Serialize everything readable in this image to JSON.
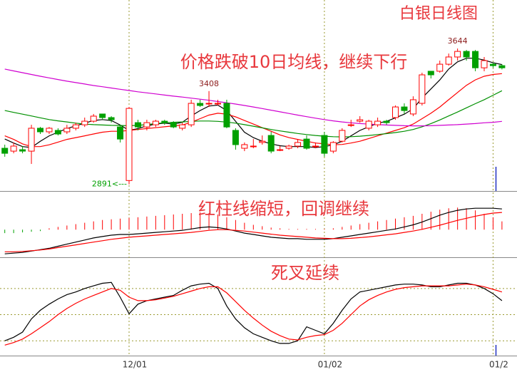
{
  "chart_data": [
    {
      "type": "candlestick",
      "title": "白银日线图",
      "annotation": "价格跌破10日均线，继续下行",
      "ylim": [
        2854,
        3913
      ],
      "up_color": "#ff0000",
      "down_color": "#00a000",
      "open": [
        3091,
        3075,
        3083,
        3075,
        3202,
        3182,
        3190,
        3182,
        3202,
        3221,
        3241,
        3281,
        3261,
        3209,
        2912,
        3233,
        3209,
        3221,
        3241,
        3233,
        3202,
        3221,
        3340,
        3340,
        3340,
        3340,
        3190,
        3091,
        3103,
        3123,
        3162,
        3083,
        3091,
        3103,
        3142,
        3103,
        3162,
        3075,
        3130,
        3221,
        3241,
        3202,
        3221,
        3241,
        3261,
        3320,
        3281,
        3340,
        3518,
        3518,
        3557,
        3597,
        3628,
        3628,
        3537,
        3557,
        3549
      ],
      "high": [
        3111,
        3123,
        3103,
        3221,
        3209,
        3209,
        3202,
        3221,
        3233,
        3261,
        3281,
        3281,
        3269,
        3221,
        3320,
        3249,
        3249,
        3249,
        3249,
        3241,
        3233,
        3360,
        3360,
        3408,
        3360,
        3360,
        3202,
        3123,
        3142,
        3162,
        3182,
        3103,
        3111,
        3142,
        3162,
        3123,
        3182,
        3130,
        3202,
        3249,
        3269,
        3249,
        3261,
        3249,
        3328,
        3340,
        3379,
        3510,
        3518,
        3577,
        3616,
        3644,
        3636,
        3636,
        3597,
        3565,
        3557
      ],
      "low": [
        3044,
        3063,
        3063,
        3004,
        3170,
        3170,
        3162,
        3170,
        3190,
        3209,
        3233,
        3249,
        3233,
        3123,
        2891,
        3190,
        3190,
        3209,
        3221,
        3202,
        3190,
        3209,
        3320,
        3320,
        3328,
        3202,
        3083,
        3075,
        3091,
        3111,
        3063,
        3075,
        3083,
        3091,
        3083,
        3091,
        3044,
        3063,
        3123,
        3209,
        3233,
        3190,
        3209,
        3221,
        3249,
        3281,
        3269,
        3328,
        3478,
        3510,
        3549,
        3577,
        3577,
        3518,
        3518,
        3537,
        3528
      ],
      "close": [
        3063,
        3103,
        3075,
        3202,
        3182,
        3202,
        3170,
        3202,
        3221,
        3241,
        3269,
        3261,
        3249,
        3142,
        3312,
        3209,
        3233,
        3241,
        3233,
        3209,
        3221,
        3340,
        3328,
        3340,
        3340,
        3209,
        3111,
        3111,
        3103,
        3130,
        3075,
        3083,
        3103,
        3123,
        3091,
        3103,
        3063,
        3123,
        3190,
        3221,
        3249,
        3241,
        3241,
        3233,
        3320,
        3300,
        3360,
        3498,
        3498,
        3557,
        3597,
        3628,
        3597,
        3537,
        3577,
        3549,
        3537
      ],
      "high_labels": [
        null,
        null,
        null,
        null,
        null,
        null,
        null,
        null,
        null,
        null,
        null,
        null,
        null,
        null,
        null,
        null,
        null,
        null,
        null,
        null,
        null,
        null,
        null,
        "3408",
        null,
        null,
        null,
        null,
        null,
        null,
        null,
        null,
        null,
        null,
        null,
        null,
        null,
        null,
        null,
        null,
        null,
        null,
        null,
        null,
        null,
        null,
        null,
        null,
        null,
        null,
        null,
        "3644",
        null,
        null,
        null,
        null,
        null
      ],
      "low_labels": [
        null,
        null,
        null,
        null,
        null,
        null,
        null,
        null,
        null,
        null,
        null,
        null,
        null,
        null,
        "2891<---",
        null,
        null,
        null,
        null,
        null,
        null,
        null,
        null,
        null,
        null,
        null,
        null,
        null,
        null,
        null,
        null,
        null,
        null,
        null,
        null,
        null,
        null,
        null,
        null,
        null,
        null,
        null,
        null,
        null,
        null,
        null,
        null,
        null,
        null,
        null,
        null,
        null,
        null,
        null,
        null,
        null,
        null
      ],
      "lines": [
        {
          "color": "#000000",
          "values": [
            3142,
            3120,
            3100,
            3095,
            3130,
            3160,
            3180,
            3200,
            3215,
            3230,
            3245,
            3250,
            3245,
            3220,
            3190,
            3200,
            3215,
            3225,
            3230,
            3225,
            3235,
            3270,
            3300,
            3325,
            3330,
            3300,
            3240,
            3180,
            3150,
            3130,
            3115,
            3105,
            3100,
            3100,
            3100,
            3095,
            3100,
            3110,
            3130,
            3160,
            3190,
            3210,
            3230,
            3240,
            3260,
            3280,
            3310,
            3370,
            3420,
            3470,
            3530,
            3570,
            3590,
            3590,
            3580,
            3565,
            3555
          ]
        },
        {
          "color": "#ff0000",
          "values": [
            3160,
            3140,
            3115,
            3100,
            3100,
            3110,
            3125,
            3140,
            3150,
            3160,
            3170,
            3180,
            3185,
            3185,
            3190,
            3195,
            3200,
            3205,
            3210,
            3215,
            3220,
            3235,
            3255,
            3275,
            3285,
            3280,
            3265,
            3245,
            3225,
            3205,
            3185,
            3165,
            3150,
            3140,
            3130,
            3120,
            3115,
            3110,
            3112,
            3120,
            3130,
            3145,
            3160,
            3175,
            3190,
            3205,
            3225,
            3255,
            3285,
            3320,
            3360,
            3400,
            3440,
            3470,
            3490,
            3500,
            3505
          ]
        },
        {
          "color": "#009000",
          "values": [
            3300,
            3290,
            3280,
            3270,
            3260,
            3250,
            3243,
            3237,
            3230,
            3225,
            3222,
            3220,
            3218,
            3217,
            3216,
            3218,
            3222,
            3228,
            3232,
            3235,
            3237,
            3240,
            3242,
            3242,
            3240,
            3236,
            3230,
            3222,
            3213,
            3204,
            3195,
            3187,
            3180,
            3173,
            3167,
            3162,
            3158,
            3155,
            3154,
            3155,
            3158,
            3162,
            3167,
            3172,
            3178,
            3185,
            3195,
            3210,
            3228,
            3248,
            3270,
            3292,
            3315,
            3338,
            3360,
            3385,
            3410
          ]
        },
        {
          "color": "#d000d0",
          "values": [
            3530,
            3520,
            3510,
            3500,
            3490,
            3481,
            3472,
            3463,
            3455,
            3447,
            3439,
            3432,
            3425,
            3418,
            3411,
            3404,
            3398,
            3392,
            3386,
            3380,
            3375,
            3369,
            3363,
            3357,
            3350,
            3343,
            3336,
            3328,
            3320,
            3311,
            3302,
            3293,
            3284,
            3275,
            3266,
            3258,
            3250,
            3243,
            3237,
            3232,
            3228,
            3225,
            3222,
            3220,
            3218,
            3216,
            3215,
            3215,
            3216,
            3218,
            3220,
            3222,
            3225,
            3228,
            3232,
            3235,
            3240
          ]
        }
      ]
    },
    {
      "type": "macd",
      "annotation": "红柱线缩短，回调继续",
      "ylim": [
        -80,
        110
      ],
      "up_color": "#ff0000",
      "down_color": "#00a000",
      "bars": [
        -10,
        -10,
        -8,
        -6,
        -4,
        4,
        8,
        12,
        16,
        20,
        24,
        28,
        30,
        32,
        34,
        36,
        38,
        40,
        42,
        44,
        46,
        48,
        50,
        48,
        44,
        36,
        28,
        20,
        14,
        10,
        6,
        4,
        2,
        2,
        2,
        2,
        2,
        4,
        8,
        12,
        16,
        20,
        24,
        28,
        32,
        36,
        40,
        46,
        52,
        58,
        62,
        64,
        62,
        56,
        46,
        36,
        24
      ],
      "lines": [
        {
          "color": "#000000",
          "values": [
            -70,
            -68,
            -66,
            -62,
            -58,
            -54,
            -48,
            -42,
            -36,
            -30,
            -24,
            -20,
            -16,
            -14,
            -14,
            -12,
            -10,
            -8,
            -6,
            -4,
            -2,
            2,
            6,
            8,
            6,
            2,
            -4,
            -10,
            -14,
            -18,
            -22,
            -24,
            -26,
            -26,
            -28,
            -28,
            -28,
            -26,
            -22,
            -18,
            -14,
            -10,
            -6,
            -2,
            2,
            8,
            14,
            22,
            32,
            42,
            50,
            56,
            60,
            62,
            62,
            62,
            60
          ]
        },
        {
          "color": "#ff0000",
          "values": [
            -64,
            -64,
            -63,
            -61,
            -59,
            -56,
            -52,
            -48,
            -44,
            -40,
            -36,
            -32,
            -28,
            -25,
            -22,
            -20,
            -18,
            -16,
            -14,
            -12,
            -10,
            -8,
            -5,
            -2,
            0,
            0,
            -2,
            -4,
            -7,
            -10,
            -13,
            -16,
            -18,
            -20,
            -22,
            -24,
            -25,
            -26,
            -26,
            -25,
            -23,
            -21,
            -18,
            -15,
            -12,
            -8,
            -4,
            1,
            7,
            13,
            20,
            27,
            33,
            39,
            44,
            48,
            50
          ]
        }
      ]
    },
    {
      "type": "kdj",
      "annotation": "死叉延续",
      "ylim": [
        3,
        115
      ],
      "gridlines": [
        20,
        50,
        80
      ],
      "categories": [
        null,
        null,
        null,
        null,
        null,
        null,
        null,
        null,
        null,
        null,
        null,
        null,
        null,
        null,
        "12/01",
        null,
        null,
        null,
        null,
        null,
        null,
        null,
        null,
        null,
        null,
        null,
        null,
        null,
        null,
        null,
        null,
        null,
        null,
        null,
        null,
        null,
        "01/02",
        null,
        null,
        null,
        null,
        null,
        null,
        null,
        null,
        null,
        null,
        null,
        null,
        null,
        null,
        null,
        null,
        null,
        null,
        "01/2",
        null
      ],
      "lines": [
        {
          "color": "#000000",
          "values": [
            20,
            24,
            30,
            45,
            55,
            62,
            68,
            73,
            76,
            80,
            83,
            86,
            87,
            70,
            51,
            62,
            66,
            68,
            70,
            72,
            78,
            83,
            85,
            86,
            80,
            60,
            45,
            35,
            28,
            24,
            20,
            17,
            17,
            20,
            36,
            32,
            28,
            40,
            55,
            68,
            76,
            78,
            80,
            82,
            84,
            85,
            85,
            84,
            82,
            82,
            84,
            86,
            86,
            84,
            80,
            74,
            66
          ]
        },
        {
          "color": "#ff0000",
          "values": [
            15,
            18,
            22,
            28,
            35,
            42,
            50,
            57,
            63,
            68,
            72,
            76,
            80,
            78,
            70,
            66,
            66,
            67,
            69,
            71,
            74,
            77,
            80,
            82,
            82,
            75,
            65,
            55,
            46,
            38,
            31,
            26,
            22,
            21,
            24,
            26,
            27,
            32,
            40,
            50,
            60,
            67,
            72,
            76,
            79,
            81,
            82,
            83,
            83,
            83,
            83,
            84,
            85,
            84,
            82,
            79,
            76
          ]
        }
      ]
    }
  ]
}
